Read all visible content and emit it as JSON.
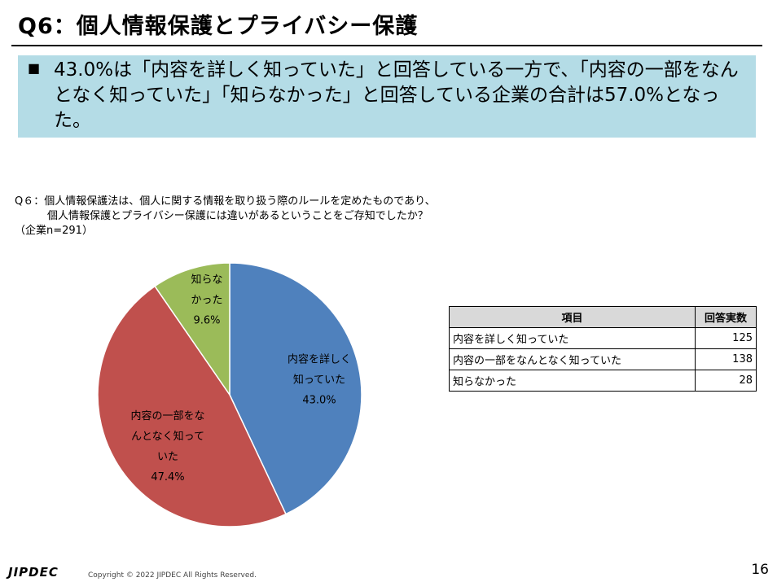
{
  "title": "Q6：個人情報保護とプライバシー保護",
  "summary": {
    "text": "43.0%は「内容を詳しく知っていた」と回答している一方で、「内容の一部をなんとなく知っていた」「知らなかった」と回答している企業の合計は57.0%となった。"
  },
  "question": {
    "line1": "Q６：個人情報保護法は、個人に関する情報を取り扱う際のルールを定めたものであり、",
    "line2": "個人情報保護とプライバシー保護には違いがあるということをご存知でしたか？",
    "sample": "（企業n=291）"
  },
  "chart_data": {
    "type": "pie",
    "categories": [
      "内容を詳しく知っていた",
      "内容の一部をなんとなく知っていた",
      "知らなかった"
    ],
    "values": [
      43.0,
      47.4,
      9.6
    ],
    "label_lines": [
      [
        "内容を詳しく",
        "知っていた",
        "43.0%"
      ],
      [
        "内容の一部をな",
        "んとなく知って",
        "いた",
        "47.4%"
      ],
      [
        "知らな",
        "かった",
        "9.6%"
      ]
    ],
    "colors": [
      "#4f81bd",
      "#c0504d",
      "#9bbb59"
    ]
  },
  "table": {
    "headers": [
      "項目",
      "回答実数"
    ],
    "rows": [
      {
        "item": "内容を詳しく知っていた",
        "count": "125"
      },
      {
        "item": "内容の一部をなんとなく知っていた",
        "count": "138"
      },
      {
        "item": "知らなかった",
        "count": "28"
      }
    ]
  },
  "footer": {
    "logo": "JIPDEC",
    "copyright": "Copyright © 2022 JIPDEC All Rights Reserved.",
    "page": "16"
  }
}
